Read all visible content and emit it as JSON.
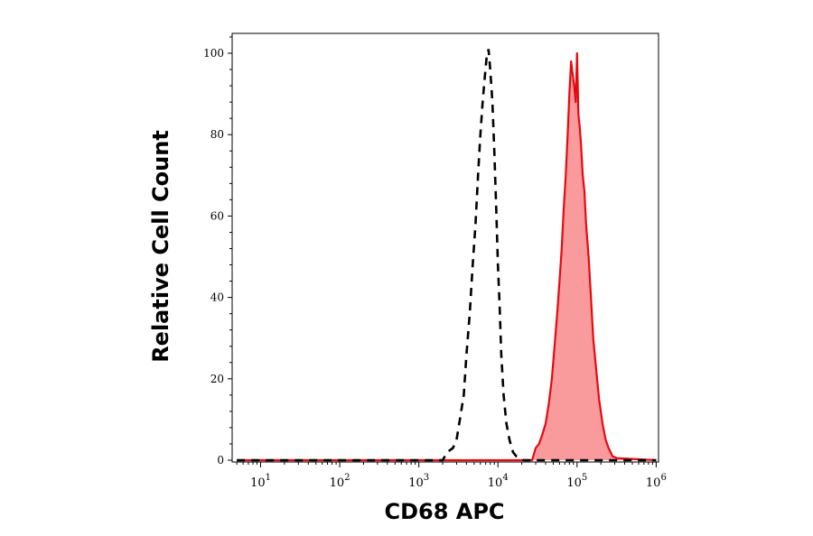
{
  "chart_data": {
    "type": "area",
    "xlabel": "CD68 APC",
    "ylabel": "Relative Cell Count",
    "x_scale": "log",
    "xlim": [
      5,
      1000000
    ],
    "ylim": [
      0,
      105
    ],
    "grid": false,
    "x_ticks": [
      {
        "base": "10",
        "exp": "1",
        "value": 10
      },
      {
        "base": "10",
        "exp": "2",
        "value": 100
      },
      {
        "base": "10",
        "exp": "3",
        "value": 1000
      },
      {
        "base": "10",
        "exp": "4",
        "value": 10000
      },
      {
        "base": "10",
        "exp": "5",
        "value": 100000
      },
      {
        "base": "10",
        "exp": "6",
        "value": 1000000
      }
    ],
    "y_ticks": [
      {
        "label": "0",
        "value": 0
      },
      {
        "label": "20",
        "value": 20
      },
      {
        "label": "40",
        "value": 40
      },
      {
        "label": "60",
        "value": 60
      },
      {
        "label": "80",
        "value": 80
      },
      {
        "label": "100",
        "value": 100
      }
    ],
    "series": [
      {
        "style": "dashed",
        "color": "#000000",
        "x": [
          5,
          2000,
          2300,
          2700,
          3000,
          3300,
          3700,
          4000,
          4400,
          4800,
          5200,
          5600,
          6000,
          6400,
          6800,
          7200,
          7600,
          8000,
          8500,
          9000,
          9500,
          10000,
          10500,
          11000,
          11800,
          12800,
          14000,
          15500,
          17000,
          19000,
          21000,
          1000000
        ],
        "y": [
          0,
          0,
          2,
          3,
          5,
          10,
          16,
          26,
          36,
          48,
          58,
          70,
          80,
          88,
          94,
          99,
          101,
          96,
          88,
          76,
          62,
          48,
          38,
          26,
          16,
          9,
          5,
          2,
          1,
          0.5,
          0,
          0
        ]
      },
      {
        "style": "filled",
        "color": "#e8080f",
        "fill": "#f99a9c",
        "x": [
          5,
          27000,
          30000,
          33000,
          36000,
          40000,
          44000,
          48000,
          52000,
          56000,
          60000,
          64000,
          68000,
          72000,
          76000,
          80000,
          84000,
          88000,
          92000,
          96000,
          100000,
          104000,
          108000,
          112000,
          118000,
          124000,
          130000,
          140000,
          150000,
          160000,
          175000,
          190000,
          210000,
          230000,
          250000,
          280000,
          320000,
          1000000
        ],
        "y": [
          0,
          0,
          3,
          4,
          6,
          9,
          14,
          20,
          28,
          36,
          44,
          52,
          62,
          70,
          80,
          90,
          98,
          95,
          92,
          88,
          100,
          85,
          82,
          78,
          70,
          66,
          58,
          50,
          40,
          30,
          22,
          15,
          9,
          5,
          3,
          1,
          0.5,
          0
        ]
      }
    ]
  }
}
